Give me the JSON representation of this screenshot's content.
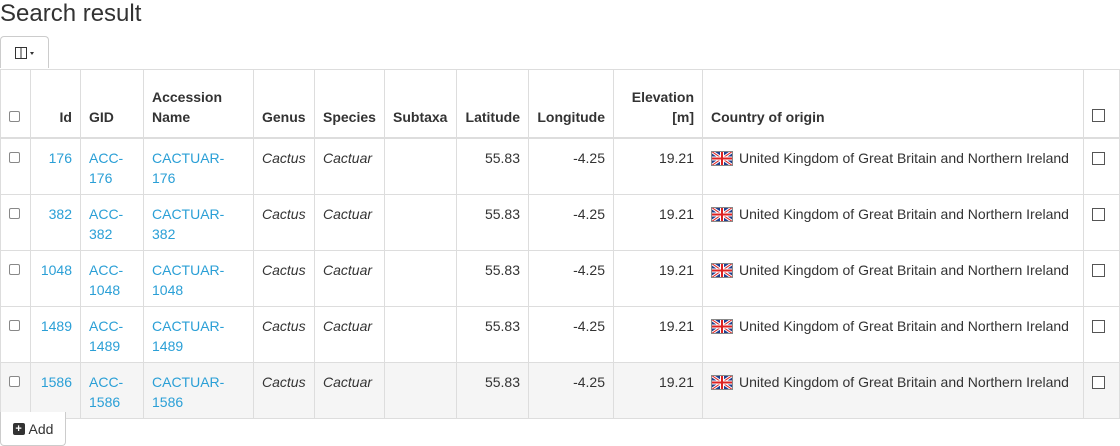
{
  "page_title": "Search result",
  "add_label": "Add",
  "accent_link_color": "#2a9fd6",
  "columns": {
    "id": "Id",
    "gid": "GID",
    "accession": "Accession Name",
    "genus": "Genus",
    "species": "Species",
    "subtaxa": "Subtaxa",
    "latitude": "Latitude",
    "longitude": "Longitude",
    "elevation": "Elevation [m]",
    "country": "Country of origin"
  },
  "rows": [
    {
      "id": "176",
      "gid": "ACC-176",
      "accession": "CACTUAR-176",
      "genus": "Cactus",
      "species": "Cactuar",
      "subtaxa": "",
      "latitude": "55.83",
      "longitude": "-4.25",
      "elevation": "19.21",
      "country": "United Kingdom of Great Britain and Northern Ireland"
    },
    {
      "id": "382",
      "gid": "ACC-382",
      "accession": "CACTUAR-382",
      "genus": "Cactus",
      "species": "Cactuar",
      "subtaxa": "",
      "latitude": "55.83",
      "longitude": "-4.25",
      "elevation": "19.21",
      "country": "United Kingdom of Great Britain and Northern Ireland"
    },
    {
      "id": "1048",
      "gid": "ACC-1048",
      "accession": "CACTUAR-1048",
      "genus": "Cactus",
      "species": "Cactuar",
      "subtaxa": "",
      "latitude": "55.83",
      "longitude": "-4.25",
      "elevation": "19.21",
      "country": "United Kingdom of Great Britain and Northern Ireland"
    },
    {
      "id": "1489",
      "gid": "ACC-1489",
      "accession": "CACTUAR-1489",
      "genus": "Cactus",
      "species": "Cactuar",
      "subtaxa": "",
      "latitude": "55.83",
      "longitude": "-4.25",
      "elevation": "19.21",
      "country": "United Kingdom of Great Britain and Northern Ireland"
    },
    {
      "id": "1586",
      "gid": "ACC-1586",
      "accession": "CACTUAR-1586",
      "genus": "Cactus",
      "species": "Cactuar",
      "subtaxa": "",
      "latitude": "55.83",
      "longitude": "-4.25",
      "elevation": "19.21",
      "country": "United Kingdom of Great Britain and Northern Ireland"
    }
  ],
  "icons": {
    "column_toggle": "columns-icon",
    "flag": "uk-flag-icon",
    "add": "plus-square-icon"
  }
}
